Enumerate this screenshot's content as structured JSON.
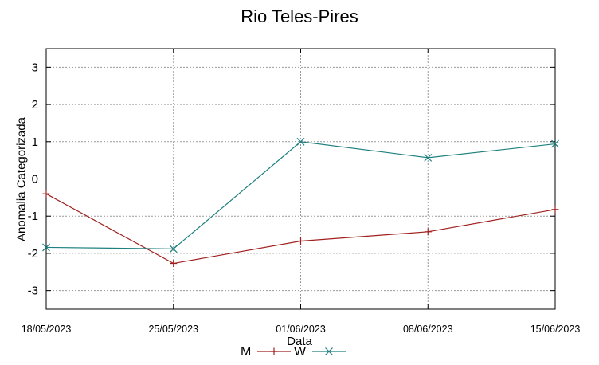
{
  "chart_data": {
    "type": "line",
    "title": "Rio Teles-Pires",
    "xlabel": "Data",
    "ylabel": "Anomalia Categorizada",
    "categories": [
      "18/05/2023",
      "25/05/2023",
      "01/06/2023",
      "08/06/2023",
      "15/06/2023"
    ],
    "yticks": [
      "3",
      "2",
      "1",
      "0",
      "-1",
      "-2",
      "-3"
    ],
    "ylim": [
      -3.5,
      3.5
    ],
    "grid": true,
    "legend_position": "bottom-center",
    "series": [
      {
        "name": "M",
        "color": "#a0201e",
        "marker": "plus",
        "values": [
          -0.4,
          -2.27,
          -1.67,
          -1.42,
          -0.82
        ]
      },
      {
        "name": "W",
        "color": "#1e8080",
        "marker": "cross",
        "values": [
          -1.84,
          -1.88,
          1.0,
          0.57,
          0.94
        ]
      }
    ]
  }
}
